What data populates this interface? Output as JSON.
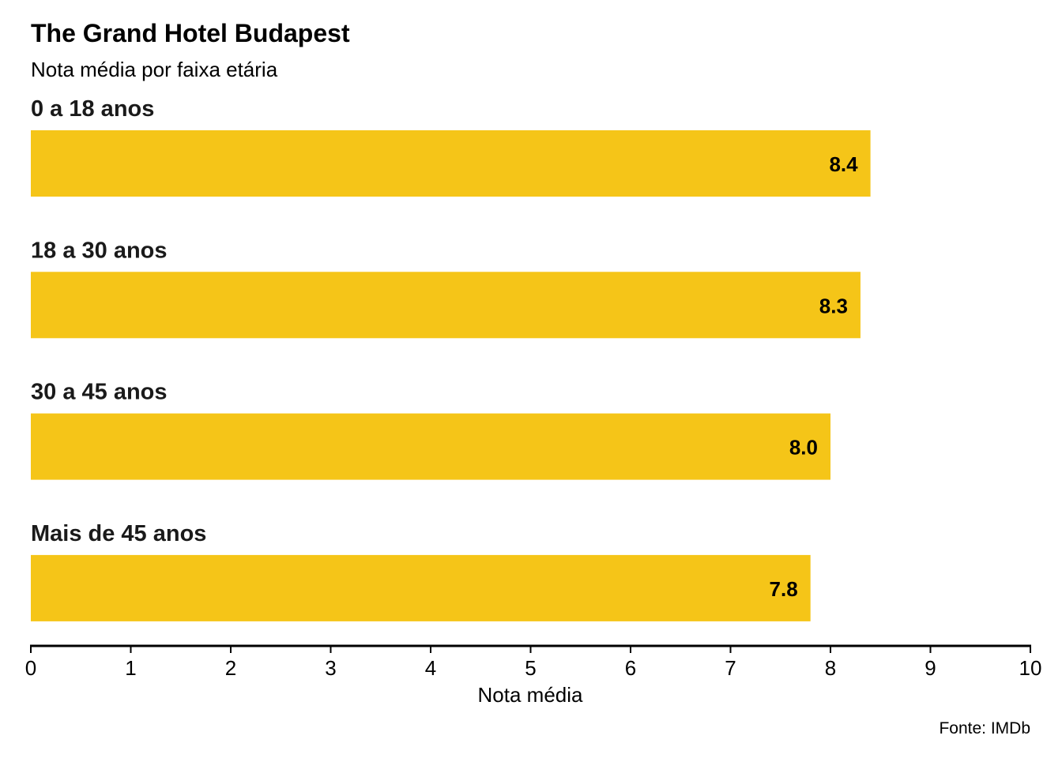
{
  "chart_data": {
    "type": "bar",
    "orientation": "horizontal",
    "title": "The Grand Hotel Budapest",
    "subtitle": "Nota média por faixa etária",
    "categories": [
      "0 a 18 anos",
      "18 a 30 anos",
      "30 a 45 anos",
      "Mais de 45 anos"
    ],
    "values": [
      8.4,
      8.3,
      8.0,
      7.8
    ],
    "value_labels": [
      "8.4",
      "8.3",
      "8.0",
      "7.8"
    ],
    "xlabel": "Nota média",
    "ylabel": "",
    "xlim": [
      0,
      10
    ],
    "x_ticks": [
      0,
      1,
      2,
      3,
      4,
      5,
      6,
      7,
      8,
      9,
      10
    ],
    "grid": false,
    "legend": "none",
    "bar_color": "#f5c518",
    "source": "Fonte: IMDb"
  }
}
